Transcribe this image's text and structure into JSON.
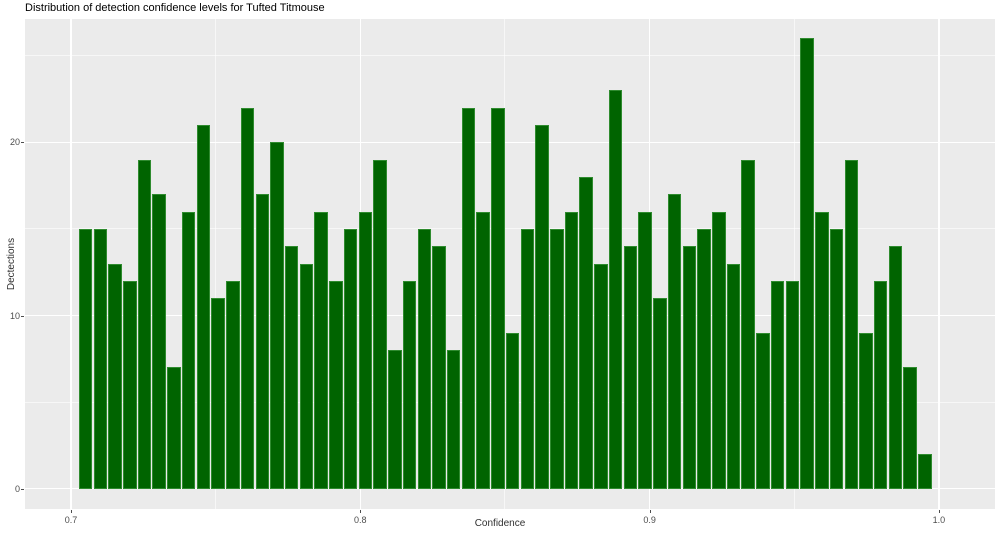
{
  "chart_data": {
    "type": "bar",
    "subtype": "histogram",
    "title": "Distribution of detection confidence levels for Tufted Titmouse",
    "xlabel": "Confidence",
    "ylabel": "Dectections",
    "bin_start": 0.7025,
    "bin_width": 0.00509,
    "counts": [
      15,
      15,
      13,
      12,
      19,
      17,
      7,
      16,
      21,
      11,
      12,
      22,
      17,
      20,
      14,
      13,
      16,
      12,
      15,
      16,
      19,
      8,
      12,
      15,
      14,
      8,
      22,
      16,
      22,
      9,
      15,
      21,
      15,
      16,
      18,
      13,
      23,
      14,
      16,
      11,
      17,
      14,
      15,
      16,
      13,
      19,
      9,
      12,
      12,
      26,
      16,
      15,
      19,
      9,
      12,
      14,
      7,
      2
    ],
    "x_tick_values": [
      0.7,
      0.8,
      0.9,
      1.0
    ],
    "x_tick_labels": [
      "0.7",
      "0.8",
      "0.9",
      "1.0"
    ],
    "x_minor_values": [
      0.75,
      0.85,
      0.95
    ],
    "y_tick_values": [
      0,
      10,
      20
    ],
    "y_tick_labels": [
      "0",
      "10",
      "20"
    ],
    "y_minor_values": [
      5,
      15,
      25
    ],
    "xlim": [
      0.6841,
      1.0194
    ],
    "ylim": [
      -1.17,
      27.12
    ],
    "grid": true,
    "legend": false,
    "colors": {
      "bar_fill": "#006400",
      "bar_border": "#2f8b2f",
      "panel_bg": "#ebebeb",
      "grid_major": "#ffffff",
      "grid_minor": "rgba(255,255,255,0.6)",
      "tick_text": "#4d4d4d",
      "axis_title_text": "#303030",
      "title_text": "#000000"
    }
  }
}
